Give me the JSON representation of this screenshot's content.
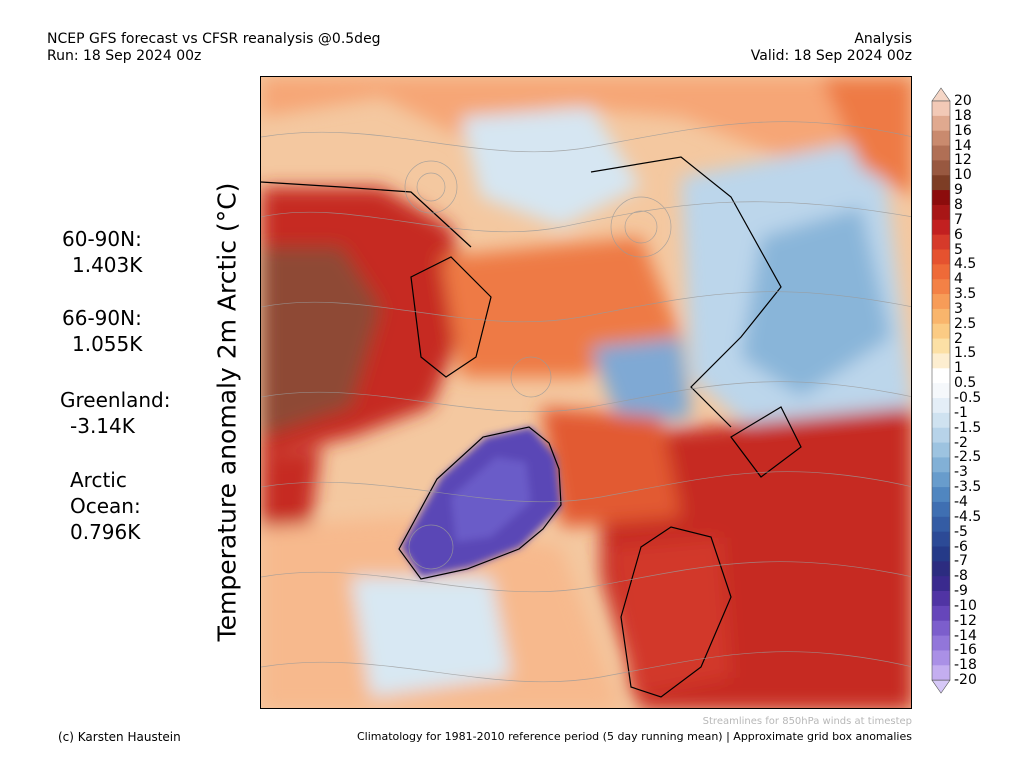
{
  "header": {
    "title": "NCEP GFS forecast vs CFSR reanalysis @0.5deg",
    "run": "Run: 18 Sep 2024 00z",
    "mode": "Analysis",
    "valid": "Valid: 18 Sep 2024 00z"
  },
  "y_axis_label": "Temperature anomaly 2m Arctic (°C)",
  "stats": [
    {
      "label": "60-90N:",
      "value": "1.403K"
    },
    {
      "label": "66-90N:",
      "value": "1.055K"
    },
    {
      "label": "Greenland:",
      "value": "-3.14K"
    },
    {
      "label": "Arctic\nOcean:",
      "value": "0.796K"
    }
  ],
  "colorbar": {
    "labels": [
      "20",
      "18",
      "16",
      "14",
      "12",
      "10",
      "9",
      "8",
      "7",
      "6",
      "5",
      "4.5",
      "4",
      "3.5",
      "3",
      "2.5",
      "2",
      "1.5",
      "1",
      "0.5",
      "-0.5",
      "-1",
      "-1.5",
      "-2",
      "-2.5",
      "-3",
      "-3.5",
      "-4",
      "-4.5",
      "-5",
      "-6",
      "-7",
      "-8",
      "-9",
      "-10",
      "-12",
      "-14",
      "-16",
      "-18",
      "-20"
    ],
    "colors": [
      "#f2c9b6",
      "#e0a98f",
      "#c98a6e",
      "#b06f55",
      "#985840",
      "#7d3d25",
      "#8c0c0c",
      "#a81616",
      "#c22020",
      "#d63a2a",
      "#e5522f",
      "#ee6a38",
      "#f38146",
      "#f79c58",
      "#f9b56c",
      "#fbcb84",
      "#fce0a5",
      "#fdeed0",
      "#ffffff",
      "#f5f8fb",
      "#e4eef7",
      "#cfe2f0",
      "#b7d3e9",
      "#9dc3e0",
      "#82b0d6",
      "#689ccc",
      "#5086c0",
      "#3f6fb2",
      "#345ca4",
      "#2c4a96",
      "#253a88",
      "#2c2c80",
      "#3a2a8e",
      "#5034a4",
      "#6646ba",
      "#7c5ecc",
      "#9276da",
      "#aa90e6",
      "#c4aef0"
    ],
    "top_arrow_color": "#f5d6c6",
    "bottom_arrow_color": "#d6c8f7"
  },
  "map": {
    "labels": [],
    "colors": {
      "ocean_base": "#f4c8a0",
      "warm_strong": "#c62a22",
      "warm_mid": "#ee7a45",
      "warm_light": "#fbd79c",
      "neutral": "#f1f4f6",
      "cool_light": "#cfe3f1",
      "cool_mid": "#89b5d9",
      "cool_strong": "#4a7dbf",
      "greenland_cold": "#5a47b6",
      "brown": "#8e4a35",
      "coastline": "#000000",
      "streamline": "#9a9a9a"
    }
  },
  "notes": {
    "streamlines": "Streamlines for 850hPa winds at timestep",
    "credit": "(c) Karsten Haustein",
    "climatology": "Climatology for 1981-2010 reference period (5 day running mean) | Approximate grid box anomalies"
  }
}
